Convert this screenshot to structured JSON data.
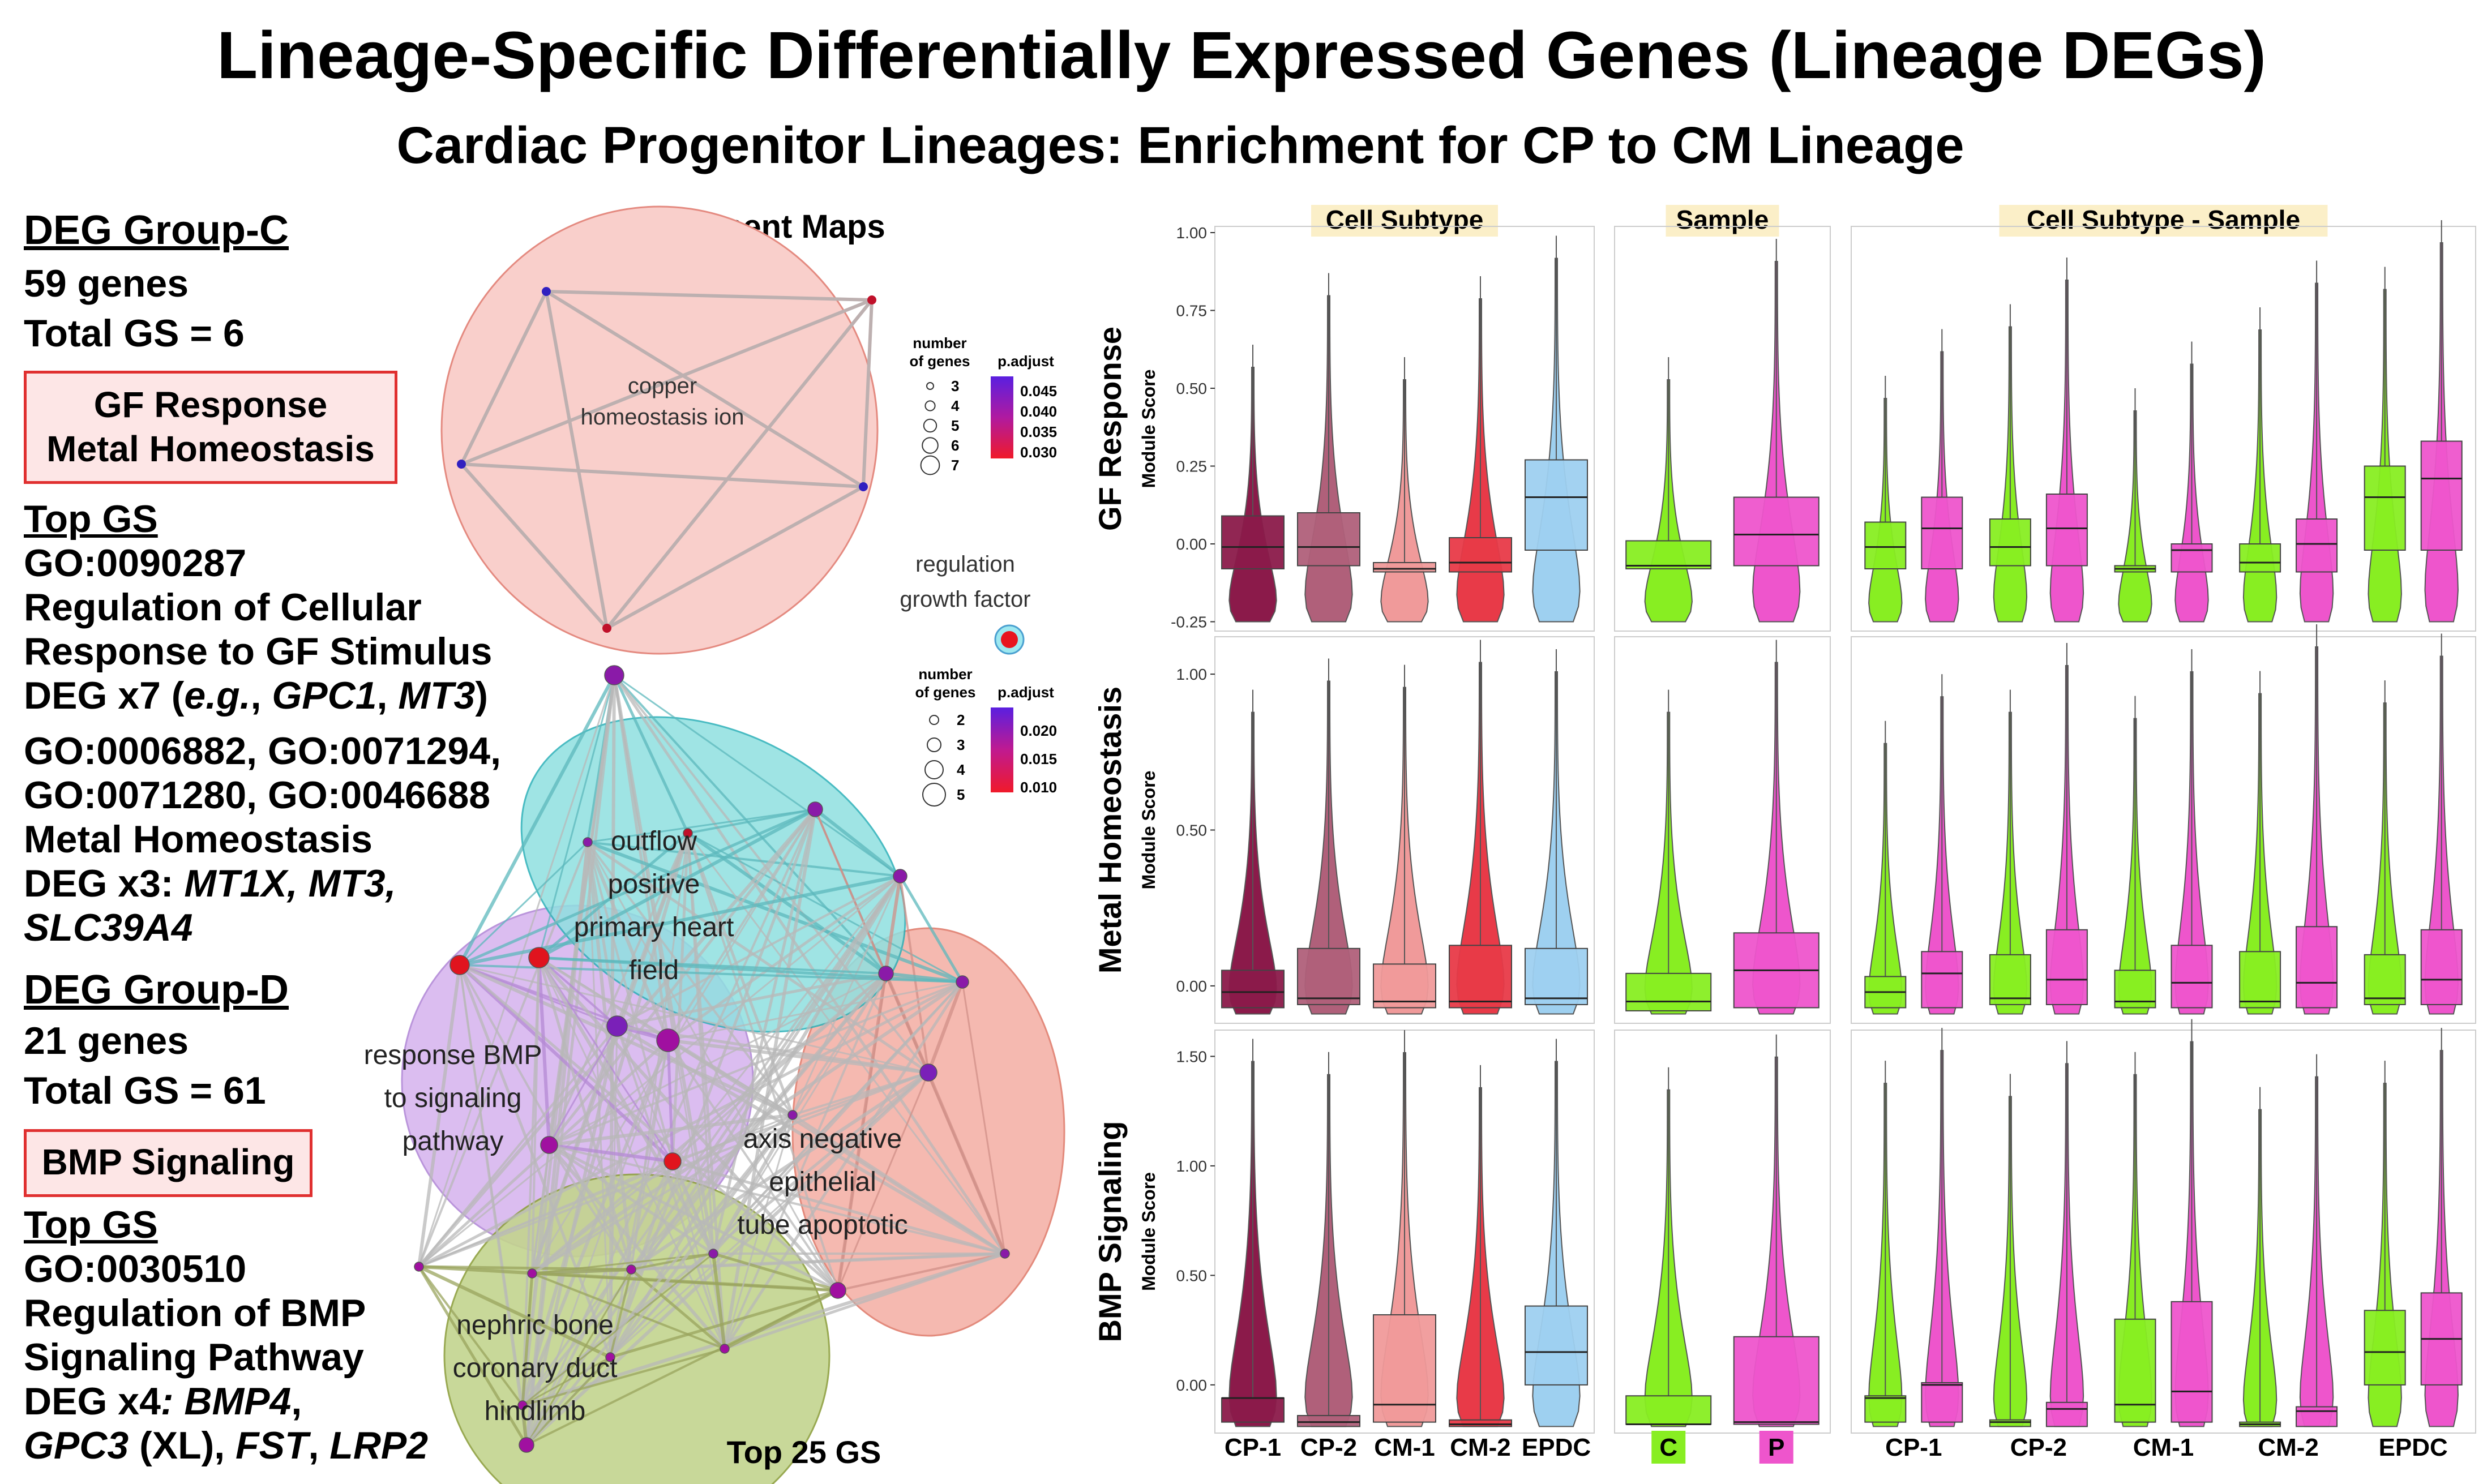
{
  "title": "Lineage-Specific Differentially Expressed Genes (Lineage DEGs)",
  "subtitle": "Cardiac Progenitor Lineages: Enrichment for CP to CM Lineage",
  "group_c": {
    "heading": "DEG Group-C",
    "genes": "59 genes",
    "total_gs": "Total GS = 6",
    "box_lines": [
      "GF Response",
      "Metal Homeostasis"
    ],
    "top_gs_label": "Top GS",
    "go1": "GO:0090287",
    "go1_name_l1": "Regulation of Cellular",
    "go1_name_l2": "Response to GF Stimulus",
    "go1_deg_prefix": "DEG x7 (",
    "go1_deg_eg": "e.g.",
    "go1_deg_mid": ", ",
    "go1_deg_g1": "GPC1",
    "go1_deg_sep": ", ",
    "go1_deg_g2": "MT3",
    "go1_deg_suffix": ")",
    "go2_l1": "GO:0006882, GO:0071294,",
    "go2_l2": "GO:0071280, GO:0046688",
    "go2_name": "Metal Homeostasis",
    "go2_deg_prefix": "DEG x3: ",
    "go2_deg_genes": "MT1X, MT3,",
    "go2_deg_genes2": "SLC39A4"
  },
  "group_d": {
    "heading": "DEG Group-D",
    "genes": "21 genes",
    "total_gs": "Total GS = 61",
    "box_lines": [
      "BMP Signaling"
    ],
    "top_gs_label": "Top GS",
    "go1": "GO:0030510",
    "go1_name_l1": "Regulation of BMP",
    "go1_name_l2": "Signaling Pathway",
    "deg_prefix": "DEG x4",
    "deg_genes1": ": BMP4",
    "deg_sep1": ",",
    "deg_genes2": "GPC3",
    "deg_xl": " (XL), ",
    "deg_genes3": "FST",
    "deg_sep2": ", ",
    "deg_genes4": "LRP2"
  },
  "network": {
    "title": "Enrichment Maps",
    "footer": "Top 25 GS",
    "top_cluster_label": [
      "copper",
      "homeostasis ion"
    ],
    "single_node_label": [
      "regulation",
      "growth factor"
    ],
    "bottom_cluster_labels": {
      "teal": [
        "outflow",
        "positive",
        "primary heart",
        "field"
      ],
      "purple": [
        "response BMP",
        "to signaling",
        "pathway"
      ],
      "salmon": [
        "axis negative",
        "epithelial",
        "tube apoptotic"
      ],
      "green": [
        "nephric bone",
        "coronary duct",
        "hindlimb"
      ]
    },
    "legend1": {
      "size_title": [
        "number",
        "of genes"
      ],
      "size_items": [
        "3",
        "4",
        "5",
        "6",
        "7"
      ],
      "color_title": "p.adjust",
      "color_ticks": [
        "0.045",
        "0.040",
        "0.035",
        "0.030"
      ]
    },
    "legend2": {
      "size_title": [
        "number",
        "of genes"
      ],
      "size_items": [
        "2",
        "3",
        "4",
        "5"
      ],
      "color_title": "p.adjust",
      "color_ticks": [
        "0.020",
        "0.015",
        "0.010"
      ]
    },
    "colors": {
      "teal": "#8fe0e0",
      "purple": "#d6b3ee",
      "salmon": "#f4b2a8",
      "green": "#bfd38a",
      "top": "#f9cfcb"
    }
  },
  "violin": {
    "column_headers": [
      "Cell Subtype",
      "Sample",
      "Cell Subtype - Sample"
    ],
    "row_labels": [
      "GF Response",
      "Metal Homeostasis",
      "BMP Signaling"
    ],
    "y_axis_label": "Module Score",
    "row_ticks": [
      [
        "1.00",
        "0.75",
        "0.50",
        "0.25",
        "0.00",
        "-0.25"
      ],
      [
        "1.00",
        "0.50",
        "0.00"
      ],
      [
        "1.50",
        "1.00",
        "0.50",
        "0.00"
      ]
    ],
    "subtype_labels": [
      "CP-1",
      "CP-2",
      "CM-1",
      "CM-2",
      "EPDC"
    ],
    "sample_labels": [
      "C",
      "P"
    ],
    "combined_labels": [
      "CP-1",
      "CP-2",
      "CM-1",
      "CM-2",
      "EPDC"
    ],
    "subtype_colors": [
      "#8b1a4a",
      "#b0607a",
      "#f09a9a",
      "#e83a48",
      "#9ed0f0"
    ],
    "sample_colors": [
      "#88ee22",
      "#ee55cc"
    ]
  }
}
